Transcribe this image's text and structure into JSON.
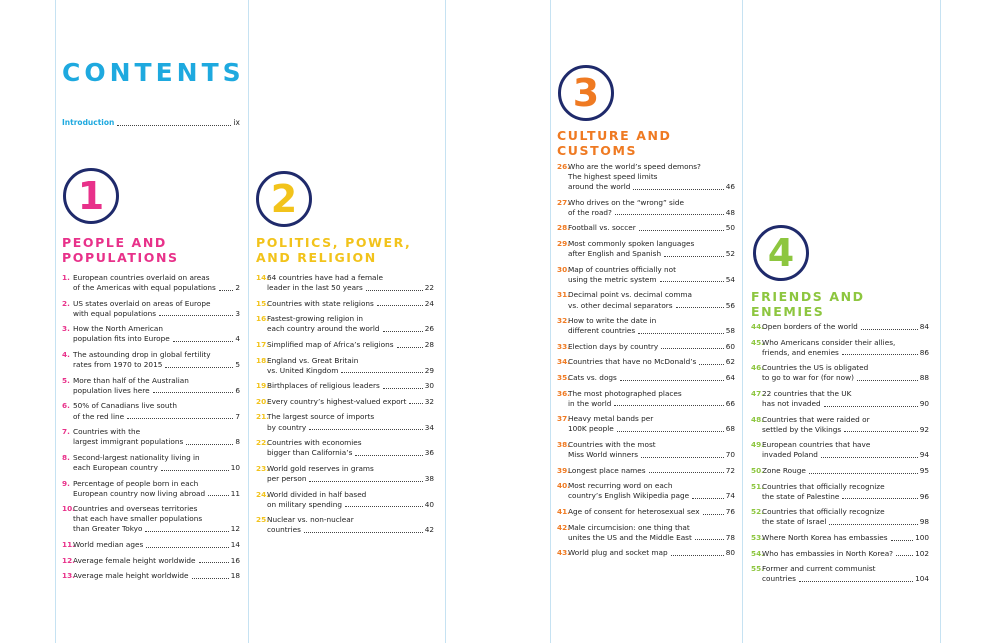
{
  "title": "CONTENTS",
  "introduction": {
    "label": "Introduction",
    "page": "ix"
  },
  "sections": [
    {
      "number": "1",
      "heading": [
        "PEOPLE AND",
        "POPULATIONS"
      ],
      "entries": [
        {
          "number": "1.",
          "lines": [
            "European countries overlaid on areas",
            "of the Americas with equal populations"
          ],
          "page": "2"
        },
        {
          "number": "2.",
          "lines": [
            "US states overlaid on areas of Europe",
            "with equal populations"
          ],
          "page": "3"
        },
        {
          "number": "3.",
          "lines": [
            "How the North American",
            "population fits into Europe"
          ],
          "page": "4"
        },
        {
          "number": "4.",
          "lines": [
            "The astounding drop in global fertility",
            "rates from 1970 to 2015"
          ],
          "page": "5"
        },
        {
          "number": "5.",
          "lines": [
            "More than half of the Australian",
            "population lives here"
          ],
          "page": "6"
        },
        {
          "number": "6.",
          "lines": [
            "50% of Canadians live south",
            "of the red line"
          ],
          "page": "7"
        },
        {
          "number": "7.",
          "lines": [
            "Countries with the",
            "largest immigrant populations"
          ],
          "page": "8"
        },
        {
          "number": "8.",
          "lines": [
            "Second-largest nationality living in",
            "each European country"
          ],
          "page": "10"
        },
        {
          "number": "9.",
          "lines": [
            "Percentage of people born in each",
            "European country now living abroad"
          ],
          "page": "11"
        },
        {
          "number": "10.",
          "lines": [
            "Countries and overseas territories",
            "that each have smaller populations",
            "than Greater Tokyo"
          ],
          "page": "12"
        },
        {
          "number": "11.",
          "lines": [
            "World median ages"
          ],
          "page": "14"
        },
        {
          "number": "12.",
          "lines": [
            "Average female height worldwide"
          ],
          "page": "16"
        },
        {
          "number": "13.",
          "lines": [
            "Average male height worldwide"
          ],
          "page": "18"
        }
      ]
    },
    {
      "number": "2",
      "heading": [
        "POLITICS, POWER,",
        "AND RELIGION"
      ],
      "entries": [
        {
          "number": "14.",
          "lines": [
            "64 countries have had a female",
            "leader in the last 50 years"
          ],
          "page": "22"
        },
        {
          "number": "15.",
          "lines": [
            "Countries with state religions"
          ],
          "page": "24"
        },
        {
          "number": "16.",
          "lines": [
            "Fastest-growing religion in",
            "each country around the world"
          ],
          "page": "26"
        },
        {
          "number": "17.",
          "lines": [
            "Simplified map of Africa’s religions"
          ],
          "page": "28"
        },
        {
          "number": "18.",
          "lines": [
            "England vs. Great Britain",
            "vs. United Kingdom"
          ],
          "page": "29"
        },
        {
          "number": "19.",
          "lines": [
            "Birthplaces of religious leaders"
          ],
          "page": "30"
        },
        {
          "number": "20.",
          "lines": [
            "Every country’s highest-valued export"
          ],
          "page": "32"
        },
        {
          "number": "21.",
          "lines": [
            "The largest source of imports",
            "by country"
          ],
          "page": "34"
        },
        {
          "number": "22.",
          "lines": [
            "Countries with economies",
            "bigger than California’s"
          ],
          "page": "36"
        },
        {
          "number": "23.",
          "lines": [
            "World gold reserves in grams",
            "per person"
          ],
          "page": "38"
        },
        {
          "number": "24.",
          "lines": [
            "World divided in half based",
            "on military spending"
          ],
          "page": "40"
        },
        {
          "number": "25.",
          "lines": [
            "Nuclear vs. non-nuclear",
            "countries"
          ],
          "page": "42"
        }
      ]
    },
    {
      "number": "3",
      "heading": [
        "CULTURE AND",
        "CUSTOMS"
      ],
      "entries": [
        {
          "number": "26.",
          "lines": [
            "Who are the world’s speed demons?",
            "The highest speed limits",
            "around the world"
          ],
          "page": "46"
        },
        {
          "number": "27.",
          "lines": [
            "Who drives on the “wrong” side",
            "of the road?"
          ],
          "page": "48"
        },
        {
          "number": "28.",
          "lines": [
            "Football vs. soccer"
          ],
          "page": "50"
        },
        {
          "number": "29.",
          "lines": [
            "Most commonly spoken languages",
            "after English and Spanish"
          ],
          "page": "52"
        },
        {
          "number": "30.",
          "lines": [
            "Map of countries officially not",
            "using the metric system"
          ],
          "page": "54"
        },
        {
          "number": "31.",
          "lines": [
            "Decimal point vs. decimal comma",
            "vs. other decimal separators"
          ],
          "page": "56"
        },
        {
          "number": "32.",
          "lines": [
            "How to write the date in",
            "different countries"
          ],
          "page": "58"
        },
        {
          "number": "33.",
          "lines": [
            "Election days by country"
          ],
          "page": "60"
        },
        {
          "number": "34.",
          "lines": [
            "Countries that have no McDonald’s"
          ],
          "page": "62"
        },
        {
          "number": "35.",
          "lines": [
            "Cats vs. dogs"
          ],
          "page": "64"
        },
        {
          "number": "36.",
          "lines": [
            "The most photographed places",
            "in the world"
          ],
          "page": "66"
        },
        {
          "number": "37.",
          "lines": [
            "Heavy metal bands per",
            "100K people"
          ],
          "page": "68"
        },
        {
          "number": "38.",
          "lines": [
            "Countries with the most",
            "Miss World winners"
          ],
          "page": "70"
        },
        {
          "number": "39.",
          "lines": [
            "Longest place names"
          ],
          "page": "72"
        },
        {
          "number": "40.",
          "lines": [
            "Most recurring word on each",
            "country’s English Wikipedia page"
          ],
          "page": "74"
        },
        {
          "number": "41.",
          "lines": [
            "Age of consent for heterosexual sex"
          ],
          "page": "76"
        },
        {
          "number": "42.",
          "lines": [
            "Male circumcision: one thing that",
            "unites the US and the Middle East"
          ],
          "page": "78"
        },
        {
          "number": "43.",
          "lines": [
            "World plug and socket map"
          ],
          "page": "80"
        }
      ]
    },
    {
      "number": "4",
      "heading": [
        "FRIENDS AND",
        "ENEMIES"
      ],
      "entries": [
        {
          "number": "44.",
          "lines": [
            "Open borders of the world"
          ],
          "page": "84"
        },
        {
          "number": "45.",
          "lines": [
            "Who Americans consider their allies,",
            "friends, and enemies"
          ],
          "page": "86"
        },
        {
          "number": "46.",
          "lines": [
            "Countries the US is obligated",
            "to go to war for (for now)"
          ],
          "page": "88"
        },
        {
          "number": "47.",
          "lines": [
            "22 countries that the UK",
            "has not invaded"
          ],
          "page": "90"
        },
        {
          "number": "48.",
          "lines": [
            "Countries that were raided or",
            "settled by the Vikings"
          ],
          "page": "92"
        },
        {
          "number": "49.",
          "lines": [
            "European countries that have",
            "invaded Poland"
          ],
          "page": "94"
        },
        {
          "number": "50.",
          "lines": [
            "Zone Rouge"
          ],
          "page": "95"
        },
        {
          "number": "51.",
          "lines": [
            "Countries that officially recognize",
            "the state of Palestine"
          ],
          "page": "96"
        },
        {
          "number": "52.",
          "lines": [
            "Countries that officially recognize",
            "the state of Israel"
          ],
          "page": "98"
        },
        {
          "number": "53.",
          "lines": [
            "Where North Korea has embassies"
          ],
          "page": "100"
        },
        {
          "number": "54.",
          "lines": [
            "Who has embassies in North Korea?"
          ],
          "page": "102"
        },
        {
          "number": "55.",
          "lines": [
            "Former and current communist",
            "countries"
          ],
          "page": "104"
        }
      ]
    }
  ]
}
